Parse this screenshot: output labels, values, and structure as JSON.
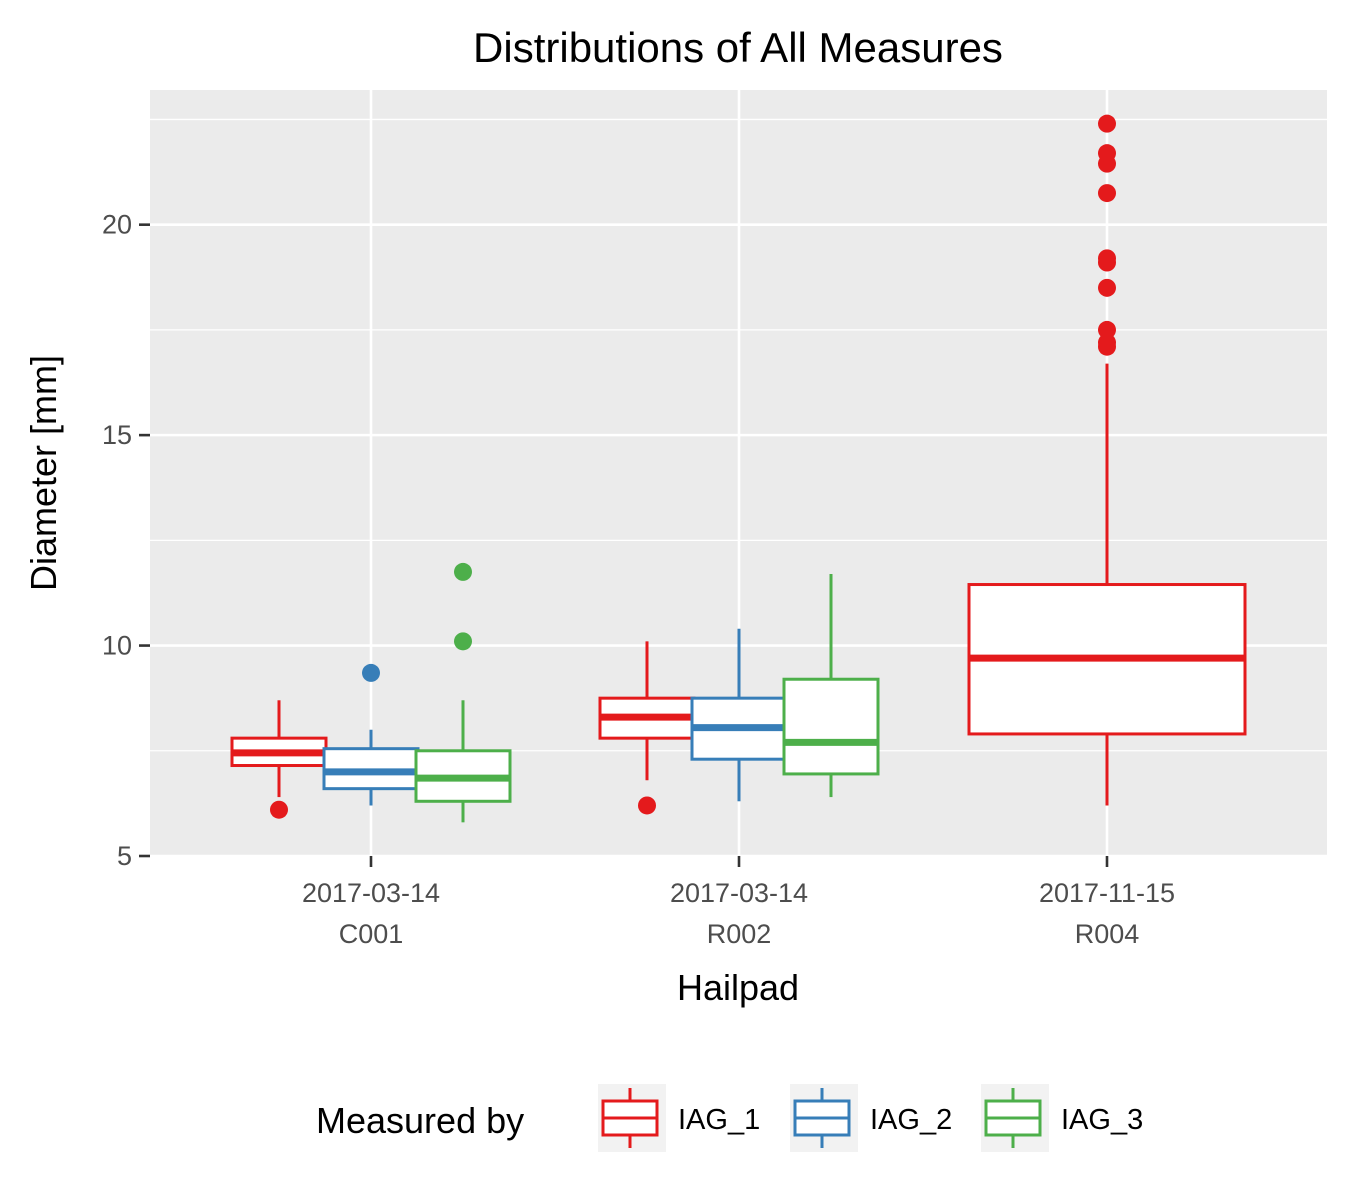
{
  "chart_data": {
    "type": "boxplot",
    "title": "Distributions of All Measures",
    "xlabel": "Hailpad",
    "ylabel": "Diameter [mm]",
    "ylim": [
      5,
      23.2
    ],
    "yticks": [
      5,
      10,
      15,
      20
    ],
    "grid": true,
    "legend_position": "bottom",
    "legend_title": "Measured by",
    "categories": [
      {
        "date": "2017-03-14",
        "pad": "C001"
      },
      {
        "date": "2017-03-14",
        "pad": "R002"
      },
      {
        "date": "2017-11-15",
        "pad": "R004"
      }
    ],
    "series": [
      {
        "name": "IAG_1",
        "color": "#E41A1C",
        "boxes": [
          {
            "category": 0,
            "whisker_low": 6.4,
            "q1": 7.15,
            "median": 7.45,
            "q3": 7.8,
            "whisker_high": 8.7,
            "outliers": [
              6.1
            ]
          },
          {
            "category": 1,
            "whisker_low": 6.8,
            "q1": 7.8,
            "median": 8.3,
            "q3": 8.75,
            "whisker_high": 10.1,
            "outliers": [
              6.2
            ]
          },
          {
            "category": 2,
            "whisker_low": 6.2,
            "q1": 7.9,
            "median": 9.7,
            "q3": 11.45,
            "whisker_high": 16.7,
            "outliers": [
              17.1,
              17.2,
              17.5,
              18.5,
              19.1,
              19.2,
              20.75,
              21.45,
              21.7,
              22.4
            ]
          }
        ]
      },
      {
        "name": "IAG_2",
        "color": "#377EB8",
        "boxes": [
          {
            "category": 0,
            "whisker_low": 6.2,
            "q1": 6.6,
            "median": 7.0,
            "q3": 7.55,
            "whisker_high": 8.0,
            "outliers": [
              9.35
            ]
          },
          {
            "category": 1,
            "whisker_low": 6.3,
            "q1": 7.3,
            "median": 8.05,
            "q3": 8.75,
            "whisker_high": 10.4,
            "outliers": []
          }
        ]
      },
      {
        "name": "IAG_3",
        "color": "#4DAF4A",
        "boxes": [
          {
            "category": 0,
            "whisker_low": 5.8,
            "q1": 6.3,
            "median": 6.85,
            "q3": 7.5,
            "whisker_high": 8.7,
            "outliers": [
              10.1,
              11.75
            ]
          },
          {
            "category": 1,
            "whisker_low": 6.4,
            "q1": 6.95,
            "median": 7.7,
            "q3": 9.2,
            "whisker_high": 11.7,
            "outliers": []
          }
        ]
      }
    ]
  }
}
